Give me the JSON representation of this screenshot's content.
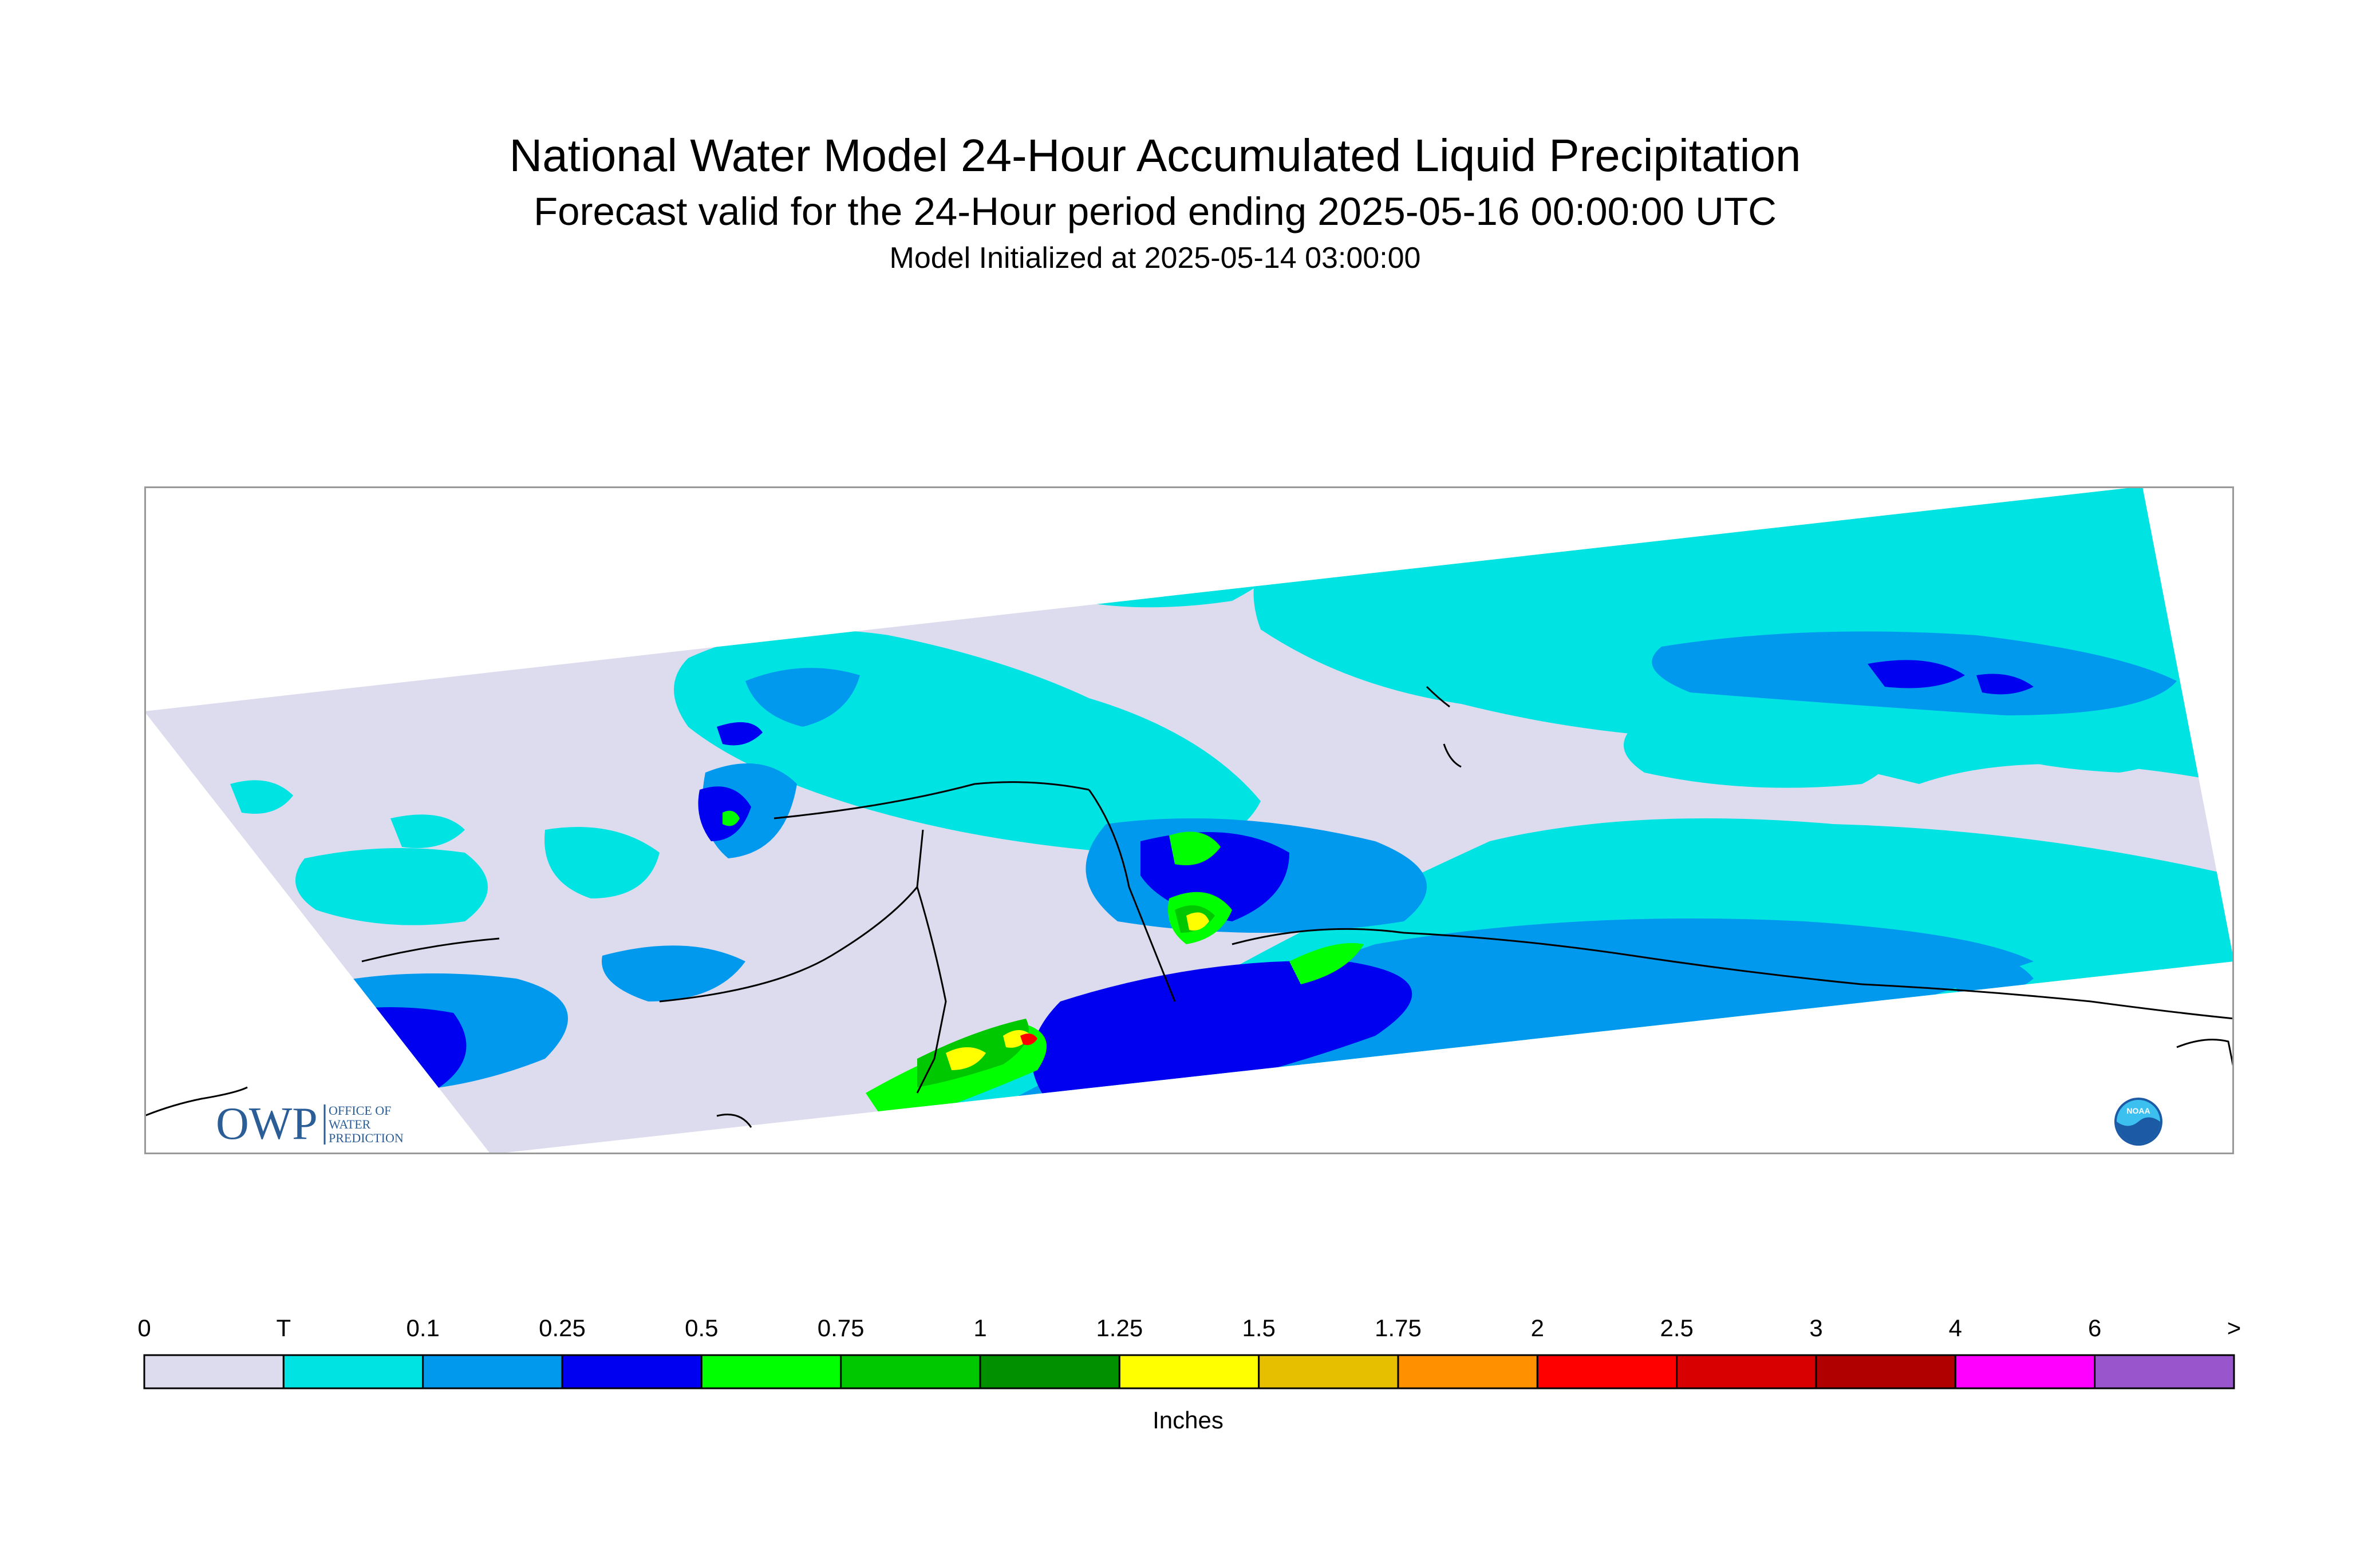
{
  "header": {
    "title": "National Water Model 24-Hour Accumulated Liquid Precipitation",
    "subtitle": "Forecast valid for the 24-Hour period ending 2025-05-16 00:00:00 UTC",
    "init": "Model Initialized at 2025-05-14 03:00:00"
  },
  "logos": {
    "owp_mark": "OWP",
    "owp_text": [
      "OFFICE OF",
      "WATER",
      "PREDICTION"
    ],
    "noaa_text": "NOAA"
  },
  "legend": {
    "labels": [
      "0",
      "T",
      "0.1",
      "0.25",
      "0.5",
      "0.75",
      "1",
      "1.25",
      "1.5",
      "1.75",
      "2",
      "2.5",
      "3",
      "4",
      "6",
      ">"
    ],
    "colors": [
      "#dcdcee",
      "#00e3e3",
      "#0099ee",
      "#0000f0",
      "#00ff00",
      "#00c800",
      "#009000",
      "#ffff00",
      "#e6c000",
      "#ff9000",
      "#ff0000",
      "#d80000",
      "#b00000",
      "#ff00ff",
      "#9955cc"
    ],
    "units": "Inches"
  }
}
